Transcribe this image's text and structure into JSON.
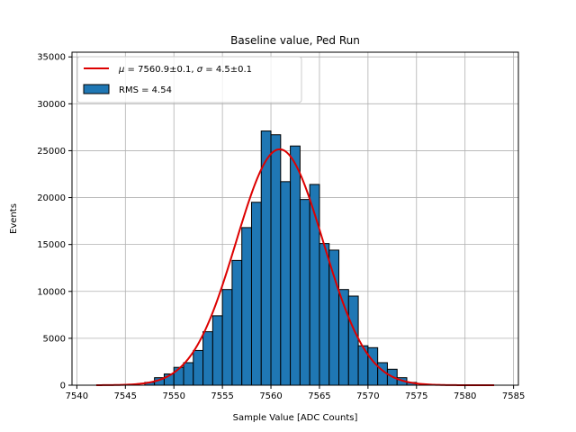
{
  "chart_data": {
    "type": "bar",
    "title": "Baseline value, Ped Run",
    "xlabel": "Sample Value [ADC Counts]",
    "ylabel": "Events",
    "xlim": [
      7539.5,
      7585.5
    ],
    "ylim": [
      0,
      35500
    ],
    "xticks": [
      7540,
      7545,
      7550,
      7555,
      7560,
      7565,
      7570,
      7575,
      7580,
      7585
    ],
    "yticks": [
      0,
      5000,
      10000,
      15000,
      20000,
      25000,
      30000,
      35000
    ],
    "grid": true,
    "legend_position": "top-left",
    "bin_width": 1,
    "bar_color": "#1f77b4",
    "edge_color": "#000000",
    "fit_color": "#dd0000",
    "histogram": {
      "name": "RMS = 4.54",
      "bin_edges": [
        7547,
        7548,
        7549,
        7550,
        7551,
        7552,
        7553,
        7554,
        7555,
        7556,
        7557,
        7558,
        7559,
        7560,
        7561,
        7562,
        7563,
        7564,
        7565,
        7566,
        7567,
        7568,
        7569,
        7570,
        7571,
        7572,
        7573,
        7574,
        7575
      ],
      "counts": [
        300,
        800,
        1200,
        1900,
        2400,
        3700,
        5700,
        7400,
        10200,
        13300,
        16800,
        19500,
        27100,
        26700,
        21700,
        25500,
        19800,
        21400,
        15100,
        14400,
        10200,
        9500,
        4200,
        4000,
        2400,
        1700,
        800,
        300
      ]
    },
    "fit": {
      "name": "$\\mu = 7560.9\\pm0.1$, $\\sigma = 4.5\\pm0.1$",
      "mu": 7560.9,
      "sigma": 4.5,
      "amplitude": 25150,
      "x_range": [
        7542,
        7583
      ]
    },
    "legend": [
      {
        "label_parts": [
          "μ",
          " = 7560.9±0.1, ",
          "σ",
          " = 4.5±0.1"
        ]
      },
      {
        "label": "RMS = 4.54"
      }
    ]
  }
}
